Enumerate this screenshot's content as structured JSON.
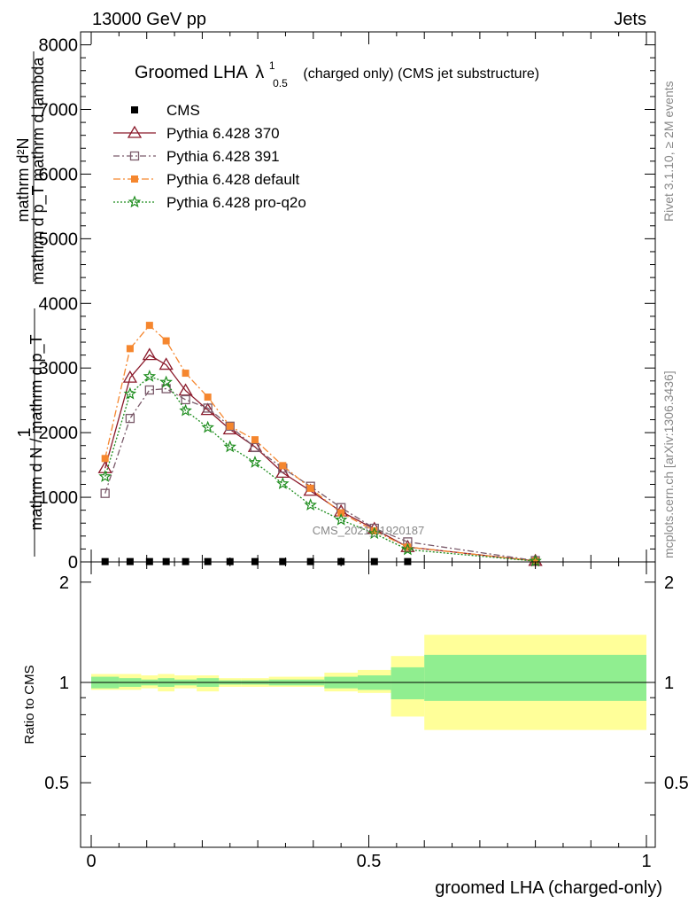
{
  "header": {
    "left": "13000 GeV pp",
    "right": "Jets"
  },
  "plot_title": {
    "main": "Groomed LHA",
    "lambda": "λ",
    "sup": "1",
    "sub": "0.5",
    "rest": "(charged only) (CMS jet substructure)"
  },
  "side_labels": {
    "rivet": "Rivet 3.1.10, ≥ 2M events",
    "mcplots": "mcplots.cern.ch [arXiv:1306.3436]"
  },
  "watermark": "CMS_2021_I1920187",
  "main_ylabel": {
    "one": "1",
    "den": "mathrm d N / mathrm d p_T",
    "num": "mathrm d²N",
    "den2": "mathrm d p_T mathrm d lambda"
  },
  "ratio_ylabel": "Ratio to CMS",
  "xlabel": "groomed LHA (charged-only)",
  "legend": [
    {
      "label": "CMS",
      "series": "cms"
    },
    {
      "label": "Pythia 6.428 370",
      "series": "p370"
    },
    {
      "label": "Pythia 6.428 391",
      "series": "p391"
    },
    {
      "label": "Pythia 6.428 default",
      "series": "pdef"
    },
    {
      "label": "Pythia 6.428 pro-q2o",
      "series": "pq2o"
    }
  ],
  "chart_data": {
    "type": "line",
    "x_edges": [
      0.0,
      0.05,
      0.09,
      0.12,
      0.15,
      0.19,
      0.23,
      0.27,
      0.32,
      0.37,
      0.42,
      0.48,
      0.54,
      0.6,
      1.0
    ],
    "x": [
      0.025,
      0.07,
      0.105,
      0.135,
      0.17,
      0.21,
      0.25,
      0.295,
      0.345,
      0.395,
      0.45,
      0.51,
      0.57,
      0.8
    ],
    "xlim": [
      0,
      1
    ],
    "x_ticks": [
      0,
      0.5,
      1
    ],
    "x_tick_labels": [
      "0",
      "0.5",
      "1"
    ],
    "main_ylim": [
      0,
      8200
    ],
    "main_y_ticks": [
      0,
      1000,
      2000,
      3000,
      4000,
      5000,
      6000,
      7000,
      8000
    ],
    "main_y_tick_labels": [
      "0",
      "1000",
      "2000",
      "3000",
      "4000",
      "5000",
      "6000",
      "7000",
      "8000"
    ],
    "series": [
      {
        "key": "cms",
        "name": "CMS",
        "values": [
          5,
          5,
          5,
          5,
          5,
          5,
          5,
          5,
          5,
          5,
          5,
          5,
          5,
          null
        ]
      },
      {
        "key": "p370",
        "name": "Pythia 6.428 370",
        "values": [
          1450,
          2850,
          3200,
          3050,
          2650,
          2350,
          2050,
          1780,
          1380,
          1100,
          780,
          510,
          230,
          15
        ]
      },
      {
        "key": "p391",
        "name": "Pythia 6.428 391",
        "values": [
          1060,
          2220,
          2660,
          2680,
          2510,
          2380,
          2100,
          1770,
          1450,
          1170,
          840,
          520,
          310,
          20
        ]
      },
      {
        "key": "pdef",
        "name": "Pythia 6.428 default",
        "values": [
          1600,
          3300,
          3660,
          3420,
          2920,
          2550,
          2100,
          1890,
          1490,
          1140,
          760,
          480,
          230,
          15
        ]
      },
      {
        "key": "pq2o",
        "name": "Pythia 6.428 pro-q2o",
        "values": [
          1320,
          2600,
          2870,
          2780,
          2340,
          2080,
          1780,
          1540,
          1210,
          880,
          650,
          440,
          190,
          12
        ]
      }
    ],
    "ratio": {
      "ylabel": "Ratio to CMS",
      "ylim": [
        0.32,
        2.3
      ],
      "y_ticks": [
        0.5,
        1,
        2
      ],
      "y_tick_labels": [
        "0.5",
        "1",
        "2"
      ],
      "stat_band": [
        [
          0.96,
          1.04
        ],
        [
          0.97,
          1.03
        ],
        [
          0.98,
          1.02
        ],
        [
          0.97,
          1.03
        ],
        [
          0.98,
          1.02
        ],
        [
          0.97,
          1.03
        ],
        [
          0.985,
          1.015
        ],
        [
          0.985,
          1.015
        ],
        [
          0.98,
          1.02
        ],
        [
          0.98,
          1.02
        ],
        [
          0.96,
          1.04
        ],
        [
          0.95,
          1.05
        ],
        [
          0.89,
          1.11
        ],
        [
          0.88,
          1.21
        ]
      ],
      "total_band": [
        [
          0.95,
          1.06
        ],
        [
          0.95,
          1.06
        ],
        [
          0.96,
          1.05
        ],
        [
          0.94,
          1.06
        ],
        [
          0.96,
          1.05
        ],
        [
          0.94,
          1.05
        ],
        [
          0.97,
          1.03
        ],
        [
          0.97,
          1.03
        ],
        [
          0.97,
          1.04
        ],
        [
          0.97,
          1.04
        ],
        [
          0.94,
          1.07
        ],
        [
          0.93,
          1.09
        ],
        [
          0.79,
          1.2
        ],
        [
          0.72,
          1.39
        ]
      ]
    }
  },
  "colors": {
    "cms": "#000000",
    "p370": "#8b1a2b",
    "p391": "#7a5a6a",
    "pdef": "#f5862e",
    "pq2o": "#1c8c1c",
    "band_stat": "#90ee90",
    "band_total": "#ffff99"
  }
}
